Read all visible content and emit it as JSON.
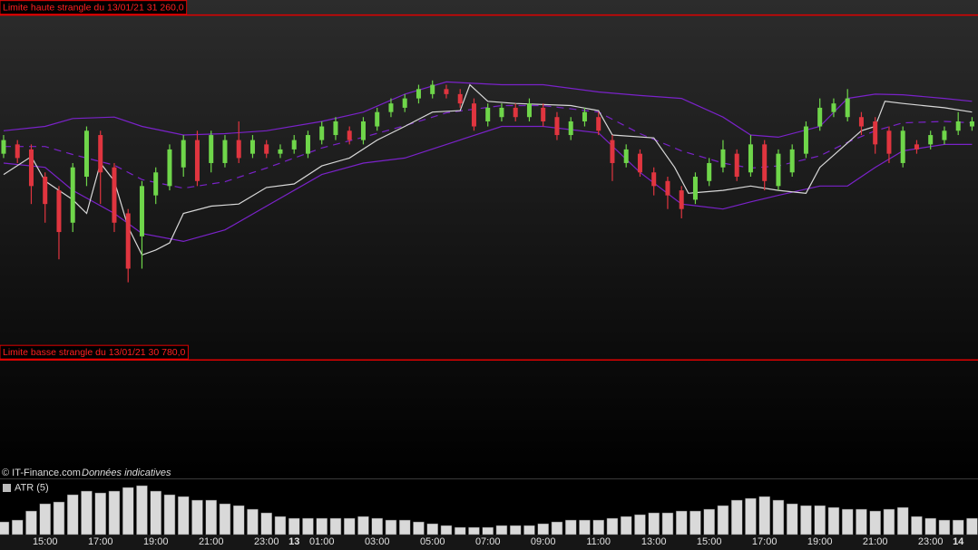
{
  "chart_data": [
    {
      "type": "candlestick",
      "source": "© IT-Finance.com",
      "note": "Données indicatives",
      "xlim": [
        -0.26,
        70.43
      ],
      "ylim": [
        30615,
        31281
      ],
      "xticks": [
        {
          "value": 3,
          "label": "15:00"
        },
        {
          "value": 7,
          "label": "17:00"
        },
        {
          "value": 11,
          "label": "19:00"
        },
        {
          "value": 15,
          "label": "21:00"
        },
        {
          "value": 19,
          "label": "23:00"
        },
        {
          "value": 21,
          "label": "13"
        },
        {
          "value": 23,
          "label": "01:00"
        },
        {
          "value": 27,
          "label": "03:00"
        },
        {
          "value": 31,
          "label": "05:00"
        },
        {
          "value": 35,
          "label": "07:00"
        },
        {
          "value": 39,
          "label": "09:00"
        },
        {
          "value": 43,
          "label": "11:00"
        },
        {
          "value": 47,
          "label": "13:00"
        },
        {
          "value": 51,
          "label": "15:00"
        },
        {
          "value": 55,
          "label": "17:00"
        },
        {
          "value": 59,
          "label": "19:00"
        },
        {
          "value": 63,
          "label": "21:00"
        },
        {
          "value": 67,
          "label": "23:00"
        },
        {
          "value": 69,
          "label": "14"
        }
      ],
      "up_color": "#6fd64a",
      "down_color": "#e0353f",
      "open": [
        31067,
        31080,
        31073,
        31035,
        31016,
        30971,
        31035,
        31093,
        31048,
        30984,
        30952,
        31009,
        31022,
        31048,
        31086,
        31054,
        31054,
        31086,
        31067,
        31080,
        31067,
        31073,
        31067,
        31086,
        31093,
        31099,
        31086,
        31105,
        31125,
        31131,
        31144,
        31150,
        31157,
        31150,
        31137,
        31112,
        31118,
        31131,
        31118,
        31131,
        31118,
        31093,
        31112,
        31118,
        31086,
        31054,
        31067,
        31041,
        31029,
        31016,
        31003,
        31029,
        31048,
        31067,
        31041,
        31080,
        31022,
        31041,
        31067,
        31105,
        31125,
        31118,
        31118,
        31112,
        31099,
        31054,
        31080,
        31080,
        31086,
        31099,
        31105
      ],
      "high": [
        31093,
        31086,
        31080,
        31041,
        31022,
        31054,
        31105,
        31099,
        31054,
        30990,
        31029,
        31048,
        31080,
        31093,
        31099,
        31099,
        31093,
        31112,
        31093,
        31086,
        31080,
        31093,
        31099,
        31112,
        31118,
        31105,
        31118,
        31131,
        31144,
        31150,
        31163,
        31169,
        31163,
        31157,
        31144,
        31137,
        31137,
        31137,
        31144,
        31137,
        31125,
        31118,
        31131,
        31125,
        31093,
        31080,
        31073,
        31048,
        31035,
        31022,
        31041,
        31061,
        31086,
        31073,
        31093,
        31086,
        31073,
        31080,
        31112,
        31144,
        31144,
        31157,
        31125,
        31118,
        31105,
        31105,
        31086,
        31099,
        31105,
        31125,
        31118
      ],
      "low": [
        31061,
        31054,
        30997,
        30971,
        30920,
        30958,
        31022,
        30997,
        30958,
        30888,
        30907,
        30997,
        31016,
        31035,
        31022,
        31041,
        31048,
        31054,
        31061,
        31061,
        31061,
        31067,
        31061,
        31080,
        31086,
        31080,
        31080,
        31099,
        31118,
        31125,
        31137,
        31144,
        31144,
        31131,
        31099,
        31105,
        31112,
        31112,
        31112,
        31105,
        31086,
        31086,
        31105,
        31093,
        31029,
        31048,
        31035,
        31009,
        30990,
        30977,
        30997,
        31022,
        31041,
        31029,
        31035,
        31016,
        31016,
        31035,
        31061,
        31099,
        31118,
        31112,
        31093,
        31067,
        31054,
        31048,
        31067,
        31073,
        31080,
        31093,
        31099
      ],
      "close": [
        31086,
        31061,
        31022,
        30997,
        30958,
        31048,
        31099,
        31041,
        30971,
        30907,
        31022,
        31041,
        31073,
        31086,
        31029,
        31093,
        31086,
        31061,
        31086,
        31067,
        31073,
        31086,
        31093,
        31105,
        31112,
        31086,
        31112,
        31125,
        31137,
        31144,
        31157,
        31163,
        31150,
        31137,
        31105,
        31131,
        31131,
        31118,
        31137,
        31112,
        31093,
        31112,
        31125,
        31099,
        31054,
        31073,
        31041,
        31022,
        31009,
        30990,
        31035,
        31054,
        31073,
        31035,
        31080,
        31029,
        31067,
        31073,
        31105,
        31131,
        31137,
        31144,
        31105,
        31080,
        31067,
        31099,
        31073,
        31093,
        31099,
        31112,
        31112
      ],
      "series": [
        {
          "color": "#7a22c9",
          "x": [
            0,
            3,
            5,
            8,
            10,
            13,
            16,
            19,
            23,
            26,
            29,
            32,
            36,
            39,
            43,
            46,
            49,
            52,
            54,
            56,
            59,
            61,
            63,
            65,
            68,
            70
          ],
          "values": [
            31099,
            31105,
            31116,
            31118,
            31105,
            31093,
            31095,
            31099,
            31112,
            31125,
            31150,
            31167,
            31163,
            31163,
            31153,
            31148,
            31144,
            31118,
            31093,
            31090,
            31105,
            31144,
            31150,
            31149,
            31144,
            31140
          ]
        },
        {
          "color": "#7a22c9",
          "dash": true,
          "x": [
            0,
            3,
            5,
            8,
            10,
            13,
            16,
            19,
            23,
            26,
            29,
            32,
            36,
            39,
            43,
            46,
            49,
            52,
            54,
            56,
            59,
            61,
            63,
            65,
            68,
            70
          ],
          "values": [
            31077,
            31077,
            31066,
            31051,
            31031,
            31019,
            31028,
            31047,
            31075,
            31090,
            31106,
            31124,
            31134,
            31134,
            31125,
            31095,
            31071,
            31054,
            31047,
            31050,
            31064,
            31083,
            31099,
            31110,
            31112,
            31110
          ]
        },
        {
          "color": "#7a22c9",
          "x": [
            0,
            3,
            5,
            8,
            10,
            13,
            16,
            19,
            23,
            26,
            29,
            32,
            36,
            39,
            43,
            46,
            49,
            52,
            54,
            56,
            59,
            61,
            63,
            65,
            68,
            70
          ],
          "values": [
            31054,
            31048,
            31016,
            30984,
            30956,
            30945,
            30961,
            30994,
            31038,
            31054,
            31061,
            31080,
            31105,
            31105,
            31096,
            31041,
            30997,
            30990,
            31000,
            31009,
            31022,
            31022,
            31048,
            31071,
            31080,
            31080
          ]
        },
        {
          "color": "#d8d8d8",
          "x": [
            0,
            2,
            3,
            4,
            5,
            6,
            7,
            8,
            9,
            10,
            11,
            12,
            13,
            15,
            17,
            19,
            21,
            23,
            25,
            27,
            29,
            31,
            33,
            33.7,
            35,
            37,
            41,
            43,
            44,
            47,
            48.5,
            49.5,
            52,
            54,
            56,
            58,
            59,
            62,
            63,
            63.7,
            65,
            68,
            70
          ],
          "values": [
            31038,
            31063,
            31029,
            31016,
            31003,
            30984,
            31054,
            31029,
            30965,
            30926,
            30933,
            30943,
            30984,
            30994,
            30997,
            31020,
            31025,
            31050,
            31061,
            31086,
            31105,
            31125,
            31127,
            31163,
            31140,
            31137,
            31134,
            31127,
            31093,
            31089,
            31048,
            31012,
            31016,
            31022,
            31016,
            31012,
            31048,
            31099,
            31105,
            31140,
            31137,
            31131,
            31125
          ]
        }
      ],
      "annotations": [
        {
          "label": "Limite haute strangle du 13/01/21 31 260,0",
          "value": 31260,
          "color": "#e00000"
        },
        {
          "label": "Limite basse strangle du 13/01/21 30 780,0",
          "value": 30780,
          "color": "#e00000"
        }
      ]
    },
    {
      "type": "bar",
      "title": "ATR (5)",
      "color": "#d9d9d9",
      "ylim": [
        0,
        30
      ],
      "values": [
        7,
        8,
        13,
        17,
        18,
        22,
        24,
        23,
        24,
        26,
        27,
        24,
        22,
        21,
        19,
        19,
        17,
        16,
        14,
        12,
        10,
        9,
        9,
        9,
        9,
        9,
        10,
        9,
        8,
        8,
        7,
        6,
        5,
        4,
        4,
        4,
        5,
        5,
        5,
        6,
        7,
        8,
        8,
        8,
        9,
        10,
        11,
        12,
        12,
        13,
        13,
        14,
        16,
        19,
        20,
        21,
        19,
        17,
        16,
        16,
        15,
        14,
        14,
        13,
        14,
        15,
        10,
        9,
        8,
        8,
        9
      ]
    }
  ]
}
